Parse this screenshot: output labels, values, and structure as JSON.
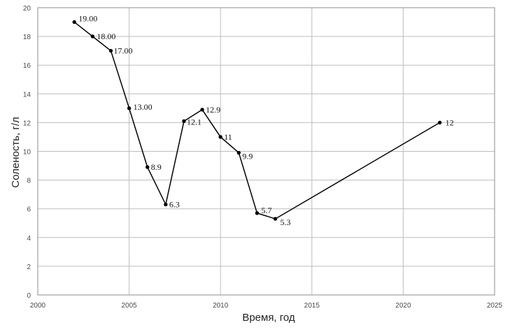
{
  "chart_data": {
    "type": "line",
    "title": "",
    "xlabel": "Время, год",
    "ylabel": "Соленость, г/л",
    "xlim": [
      2000,
      2025
    ],
    "ylim": [
      0,
      20
    ],
    "x_ticks": [
      2000,
      2005,
      2010,
      2015,
      2020,
      2025
    ],
    "y_ticks": [
      0,
      2,
      4,
      6,
      8,
      10,
      12,
      14,
      16,
      18,
      20
    ],
    "grid": true,
    "legend": "none",
    "line_color": "#000000",
    "grid_color": "#bdbdbd",
    "series": [
      {
        "points": [
          {
            "x": 2002,
            "y": 19.0,
            "label": "19.00"
          },
          {
            "x": 2003,
            "y": 18.0,
            "label": "18.00"
          },
          {
            "x": 2004,
            "y": 17.0,
            "label": "17.00"
          },
          {
            "x": 2005,
            "y": 13.0,
            "label": "13.00"
          },
          {
            "x": 2006,
            "y": 8.9,
            "label": "8.9"
          },
          {
            "x": 2007,
            "y": 6.3,
            "label": "6.3"
          },
          {
            "x": 2008,
            "y": 12.1,
            "label": "12.1"
          },
          {
            "x": 2009,
            "y": 12.9,
            "label": "12.9"
          },
          {
            "x": 2010,
            "y": 11.0,
            "label": "11"
          },
          {
            "x": 2011,
            "y": 9.9,
            "label": "9.9"
          },
          {
            "x": 2012,
            "y": 5.7,
            "label": "5.7"
          },
          {
            "x": 2013,
            "y": 5.3,
            "label": "5.3"
          },
          {
            "x": 2022,
            "y": 12.0,
            "label": "12"
          }
        ]
      }
    ]
  }
}
